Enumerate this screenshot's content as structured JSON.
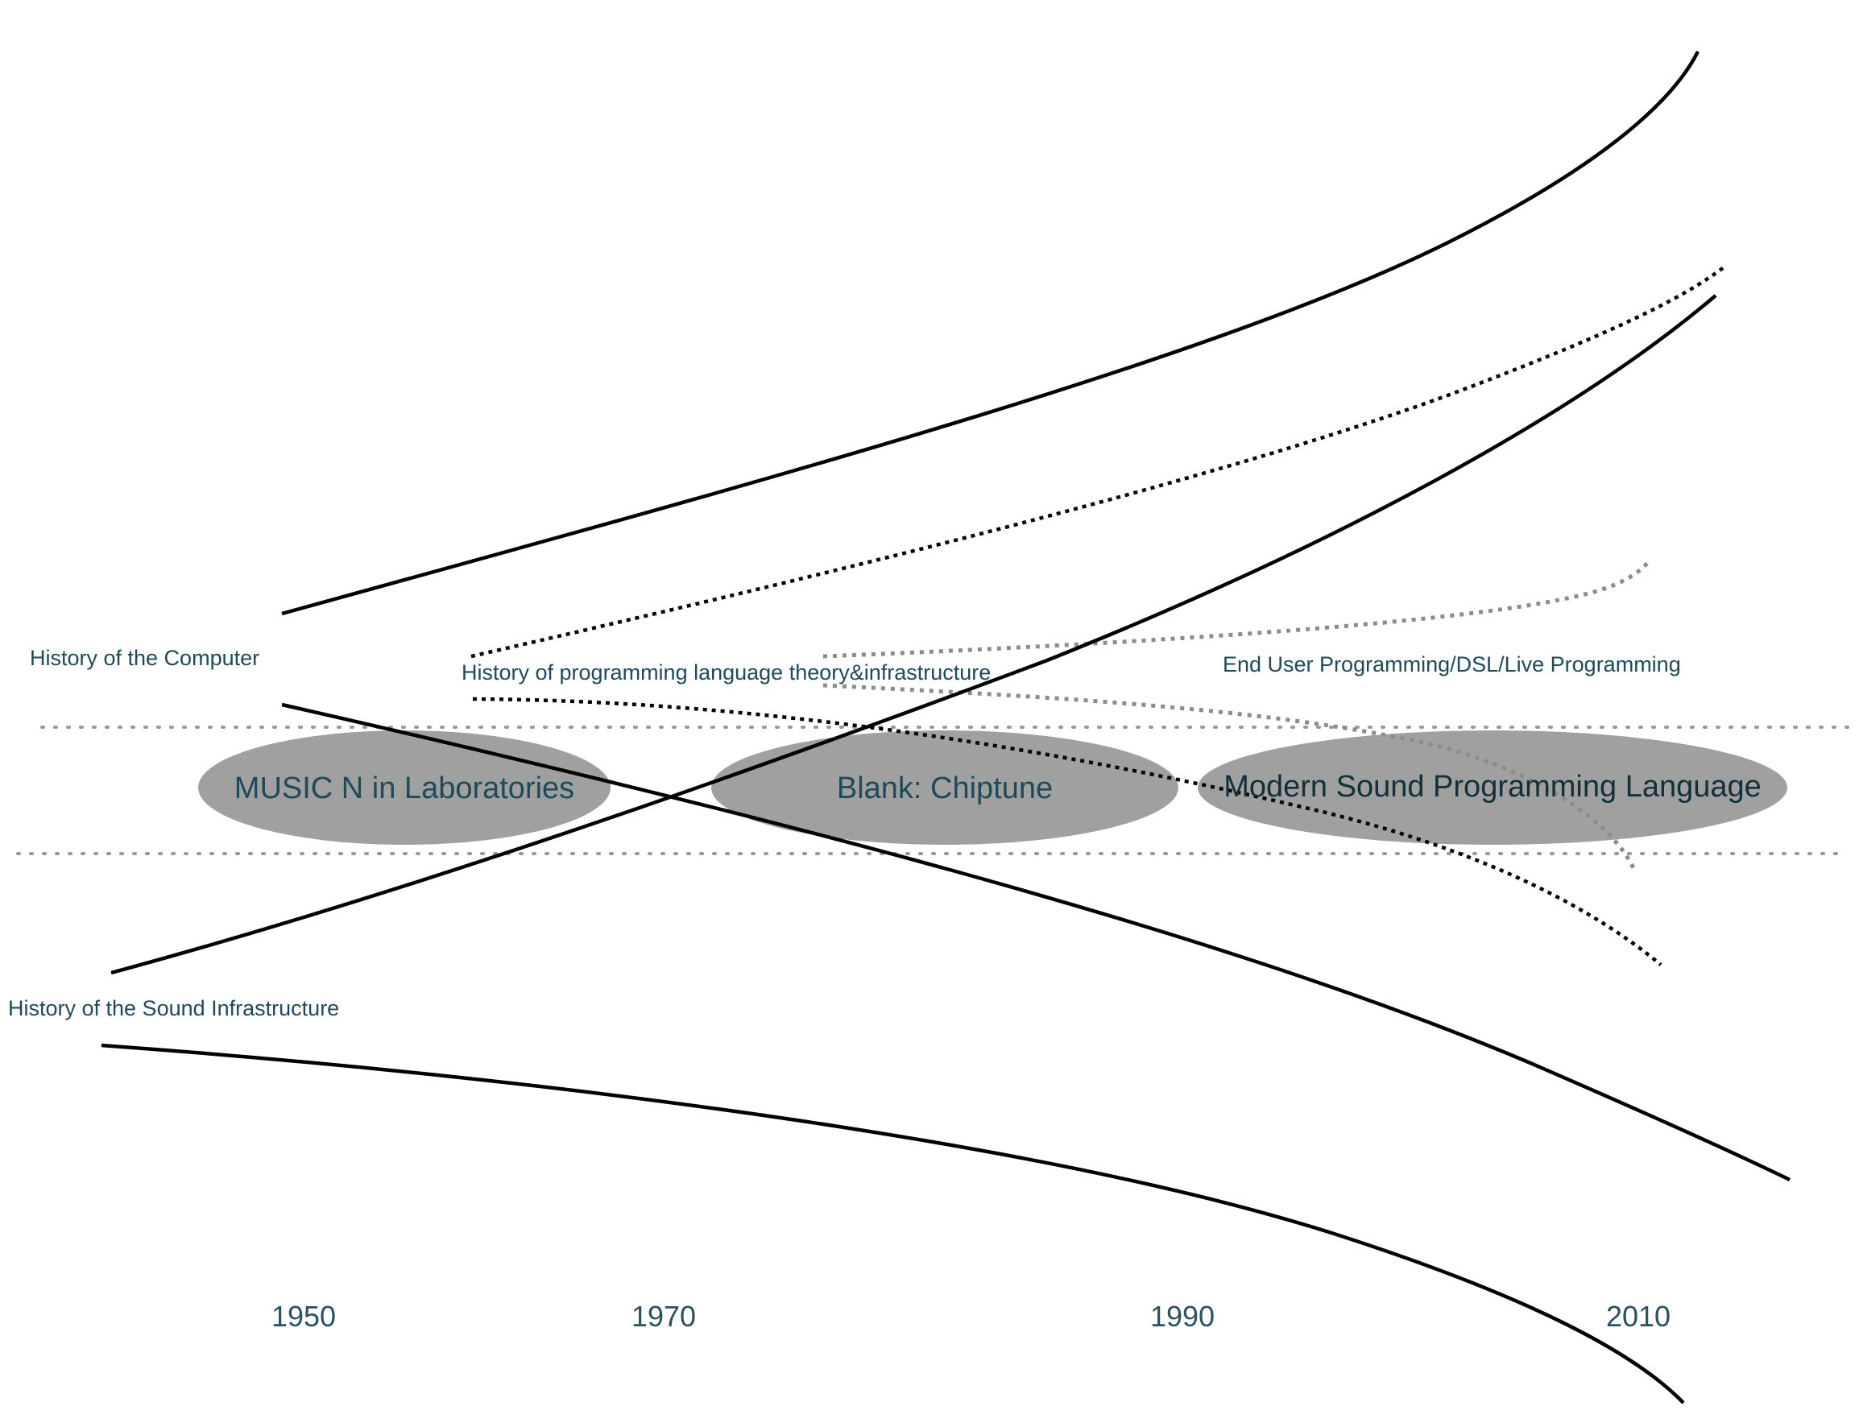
{
  "streams": {
    "computer": "History of the Computer",
    "language": "History of programming language theory&infrastructure",
    "end_user": "End User Programming/DSL/Live Programming",
    "sound": "History of the Sound Infrastructure"
  },
  "eras": {
    "music_n": "MUSIC N in Laboratories",
    "chiptune": "Blank: Chiptune",
    "modern": "Modern Sound Programming Language"
  },
  "timeline": {
    "years": [
      "1950",
      "1970",
      "1990",
      "2010"
    ]
  },
  "colors": {
    "text": "#1e4a5a",
    "ellipse_fill": "#a0a0a0",
    "solid_line": "#000000",
    "dotted_black": "#000000",
    "dotted_gray": "#8c8c8c"
  }
}
